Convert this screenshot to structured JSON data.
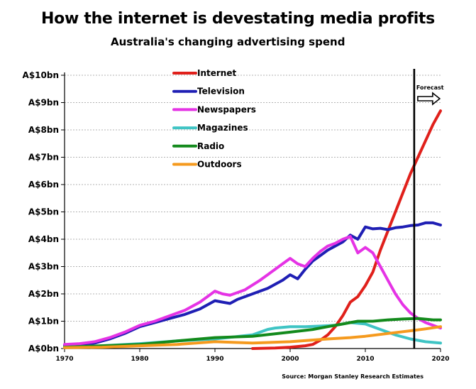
{
  "chart_data": {
    "type": "line",
    "title": "How the internet is devestating media profits",
    "subtitle": "Australia's changing advertising spend",
    "xlabel": "",
    "ylabel": "",
    "xlim": [
      1970,
      2020
    ],
    "ylim": [
      0,
      10
    ],
    "x_ticks": [
      1970,
      1980,
      1990,
      2000,
      2010,
      2020
    ],
    "y_ticks": [
      {
        "value": 0,
        "label": "A$0bn"
      },
      {
        "value": 1,
        "label": "A$1bn"
      },
      {
        "value": 2,
        "label": "A$2bn"
      },
      {
        "value": 3,
        "label": "A$3bn"
      },
      {
        "value": 4,
        "label": "A$4bn"
      },
      {
        "value": 5,
        "label": "A$5bn"
      },
      {
        "value": 6,
        "label": "A$6bn"
      },
      {
        "value": 7,
        "label": "A$7bn"
      },
      {
        "value": 8,
        "label": "A$8bn"
      },
      {
        "value": 9,
        "label": "A$9bn"
      },
      {
        "value": 10,
        "label": "A$10bn"
      }
    ],
    "grid": "horizontal-dashed",
    "legend_position": "top-center",
    "forecast": {
      "label": "Forecast",
      "start_year": 2016.5
    },
    "source": "Source: Morgan Stanley Research Estimates",
    "series": [
      {
        "name": "Internet",
        "color": "#e0201b",
        "points": [
          [
            1995,
            0.0
          ],
          [
            1998,
            0.02
          ],
          [
            2000,
            0.05
          ],
          [
            2002,
            0.1
          ],
          [
            2003,
            0.15
          ],
          [
            2004,
            0.3
          ],
          [
            2005,
            0.5
          ],
          [
            2006,
            0.8
          ],
          [
            2007,
            1.2
          ],
          [
            2008,
            1.7
          ],
          [
            2009,
            1.9
          ],
          [
            2010,
            2.3
          ],
          [
            2011,
            2.8
          ],
          [
            2012,
            3.6
          ],
          [
            2013,
            4.3
          ],
          [
            2014,
            5.0
          ],
          [
            2015,
            5.7
          ],
          [
            2016,
            6.4
          ],
          [
            2017,
            7.0
          ],
          [
            2018,
            7.6
          ],
          [
            2019,
            8.2
          ],
          [
            2020,
            8.7
          ]
        ]
      },
      {
        "name": "Television",
        "color": "#1f1fb4",
        "points": [
          [
            1970,
            0.12
          ],
          [
            1972,
            0.14
          ],
          [
            1974,
            0.2
          ],
          [
            1976,
            0.35
          ],
          [
            1978,
            0.55
          ],
          [
            1980,
            0.8
          ],
          [
            1982,
            0.95
          ],
          [
            1984,
            1.1
          ],
          [
            1986,
            1.25
          ],
          [
            1988,
            1.45
          ],
          [
            1990,
            1.75
          ],
          [
            1991,
            1.7
          ],
          [
            1992,
            1.65
          ],
          [
            1993,
            1.8
          ],
          [
            1994,
            1.9
          ],
          [
            1996,
            2.1
          ],
          [
            1997,
            2.2
          ],
          [
            1998,
            2.35
          ],
          [
            1999,
            2.5
          ],
          [
            2000,
            2.7
          ],
          [
            2001,
            2.55
          ],
          [
            2002,
            2.9
          ],
          [
            2003,
            3.2
          ],
          [
            2004,
            3.4
          ],
          [
            2005,
            3.6
          ],
          [
            2006,
            3.75
          ],
          [
            2007,
            3.9
          ],
          [
            2008,
            4.15
          ],
          [
            2009,
            4.0
          ],
          [
            2010,
            4.45
          ],
          [
            2011,
            4.38
          ],
          [
            2012,
            4.4
          ],
          [
            2013,
            4.35
          ],
          [
            2014,
            4.42
          ],
          [
            2015,
            4.45
          ],
          [
            2016,
            4.5
          ],
          [
            2017,
            4.52
          ],
          [
            2018,
            4.6
          ],
          [
            2019,
            4.6
          ],
          [
            2020,
            4.52
          ]
        ]
      },
      {
        "name": "Newspapers",
        "color": "#e533e5",
        "points": [
          [
            1970,
            0.15
          ],
          [
            1972,
            0.18
          ],
          [
            1974,
            0.25
          ],
          [
            1976,
            0.4
          ],
          [
            1978,
            0.6
          ],
          [
            1980,
            0.85
          ],
          [
            1982,
            1.0
          ],
          [
            1984,
            1.2
          ],
          [
            1986,
            1.4
          ],
          [
            1988,
            1.7
          ],
          [
            1990,
            2.1
          ],
          [
            1991,
            2.0
          ],
          [
            1992,
            1.95
          ],
          [
            1993,
            2.05
          ],
          [
            1994,
            2.15
          ],
          [
            1996,
            2.5
          ],
          [
            1997,
            2.7
          ],
          [
            1998,
            2.9
          ],
          [
            1999,
            3.1
          ],
          [
            2000,
            3.3
          ],
          [
            2001,
            3.1
          ],
          [
            2002,
            3.0
          ],
          [
            2003,
            3.3
          ],
          [
            2004,
            3.55
          ],
          [
            2005,
            3.75
          ],
          [
            2006,
            3.85
          ],
          [
            2007,
            4.0
          ],
          [
            2008,
            4.1
          ],
          [
            2009,
            3.5
          ],
          [
            2010,
            3.7
          ],
          [
            2011,
            3.5
          ],
          [
            2012,
            3.0
          ],
          [
            2013,
            2.5
          ],
          [
            2014,
            2.0
          ],
          [
            2015,
            1.6
          ],
          [
            2016,
            1.3
          ],
          [
            2017,
            1.1
          ],
          [
            2018,
            0.95
          ],
          [
            2019,
            0.85
          ],
          [
            2020,
            0.75
          ]
        ]
      },
      {
        "name": "Magazines",
        "color": "#3fc4c4",
        "points": [
          [
            1970,
            0.05
          ],
          [
            1975,
            0.1
          ],
          [
            1980,
            0.18
          ],
          [
            1985,
            0.28
          ],
          [
            1990,
            0.35
          ],
          [
            1995,
            0.5
          ],
          [
            1997,
            0.7
          ],
          [
            1998,
            0.75
          ],
          [
            2000,
            0.8
          ],
          [
            2002,
            0.8
          ],
          [
            2004,
            0.82
          ],
          [
            2006,
            0.85
          ],
          [
            2008,
            0.95
          ],
          [
            2010,
            0.9
          ],
          [
            2012,
            0.7
          ],
          [
            2014,
            0.5
          ],
          [
            2016,
            0.35
          ],
          [
            2018,
            0.25
          ],
          [
            2020,
            0.2
          ]
        ]
      },
      {
        "name": "Radio",
        "color": "#138a1c",
        "points": [
          [
            1970,
            0.05
          ],
          [
            1975,
            0.1
          ],
          [
            1980,
            0.15
          ],
          [
            1985,
            0.28
          ],
          [
            1990,
            0.4
          ],
          [
            1995,
            0.45
          ],
          [
            2000,
            0.6
          ],
          [
            2003,
            0.7
          ],
          [
            2005,
            0.8
          ],
          [
            2007,
            0.9
          ],
          [
            2009,
            1.0
          ],
          [
            2011,
            1.0
          ],
          [
            2013,
            1.05
          ],
          [
            2015,
            1.08
          ],
          [
            2017,
            1.1
          ],
          [
            2019,
            1.05
          ],
          [
            2020,
            1.05
          ]
        ]
      },
      {
        "name": "Outdoors",
        "color": "#f59a1e",
        "points": [
          [
            1970,
            0.03
          ],
          [
            1975,
            0.05
          ],
          [
            1980,
            0.1
          ],
          [
            1985,
            0.15
          ],
          [
            1990,
            0.25
          ],
          [
            1995,
            0.2
          ],
          [
            2000,
            0.25
          ],
          [
            2005,
            0.35
          ],
          [
            2008,
            0.4
          ],
          [
            2010,
            0.45
          ],
          [
            2013,
            0.55
          ],
          [
            2016,
            0.65
          ],
          [
            2018,
            0.72
          ],
          [
            2020,
            0.8
          ]
        ]
      }
    ]
  }
}
